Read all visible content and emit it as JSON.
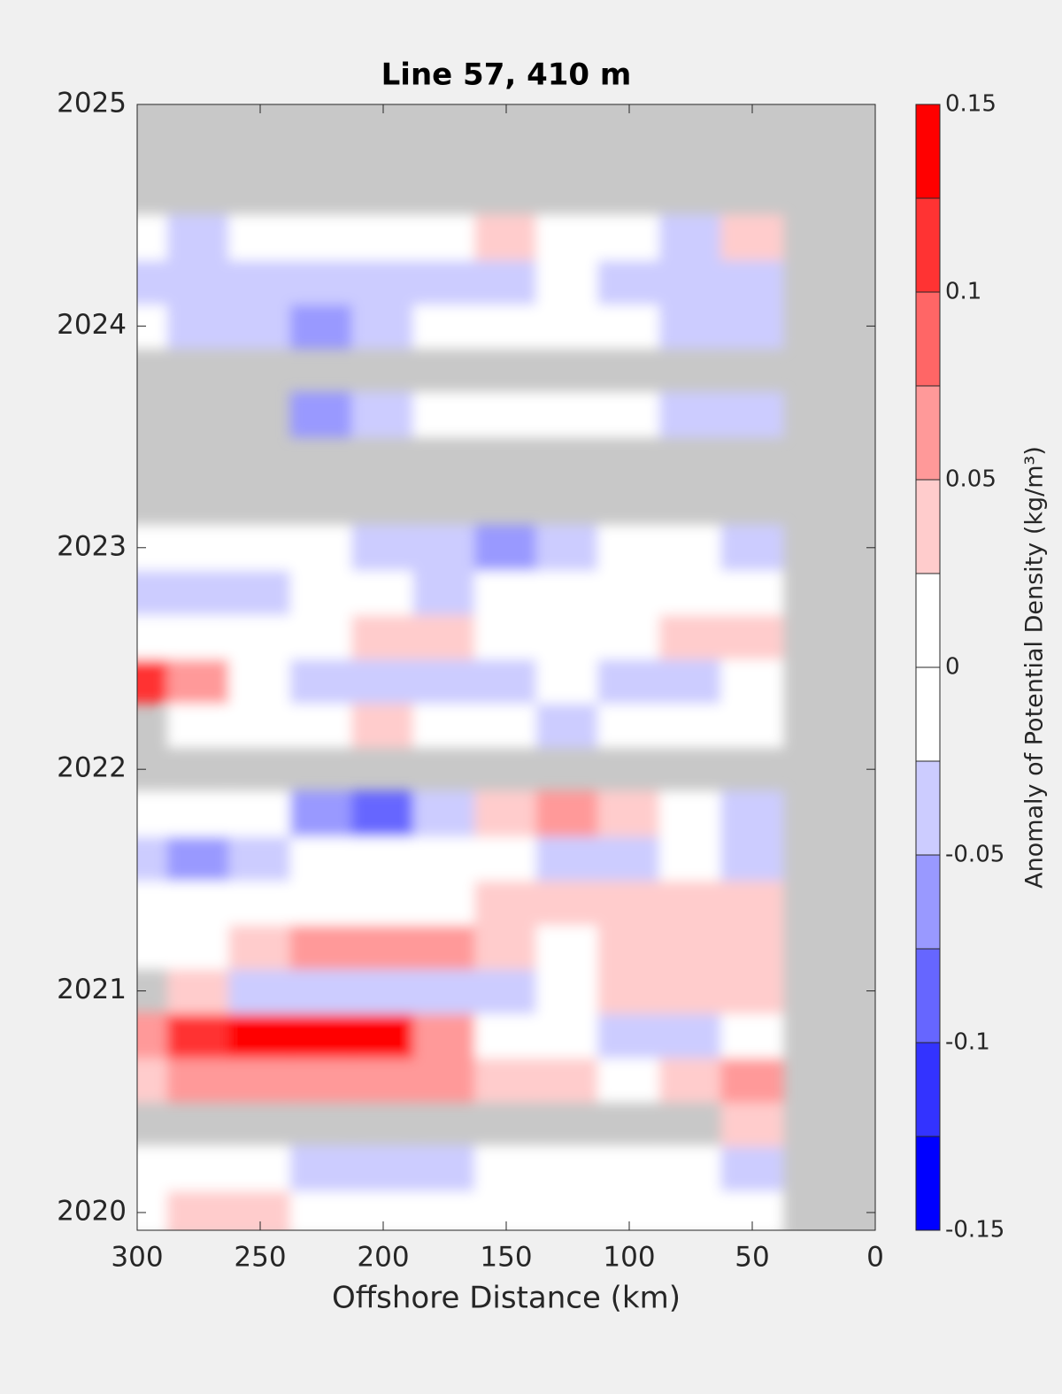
{
  "chart_data": {
    "type": "contour",
    "title": "Line 57, 410 m",
    "x_label": "Offshore Distance (km)",
    "colorbar_label": "Anomaly of Potential Density (kg/m³)",
    "xlim": [
      300,
      0
    ],
    "xticks": [
      300,
      250,
      200,
      150,
      100,
      50,
      0
    ],
    "ylim": [
      2019.92,
      2025
    ],
    "yticks": [
      2020,
      2021,
      2022,
      2023,
      2024,
      2025
    ],
    "x": [
      300,
      275,
      250,
      225,
      200,
      175,
      150,
      125,
      100,
      75,
      50
    ],
    "y": [
      2020.0,
      2020.2,
      2020.4,
      2020.6,
      2020.8,
      2021.0,
      2021.2,
      2021.4,
      2021.6,
      2021.8,
      2022.0,
      2022.2,
      2022.4,
      2022.6,
      2022.8,
      2023.0,
      2023.2,
      2023.4,
      2023.6,
      2023.8,
      2024.0,
      2024.2,
      2024.4
    ],
    "z": [
      [
        0,
        0.03,
        0.03,
        0,
        0,
        0,
        0,
        0,
        0,
        0,
        0
      ],
      [
        0,
        0,
        0,
        -0.03,
        -0.05,
        -0.03,
        0,
        0,
        0,
        0,
        -0.05
      ],
      [
        null,
        null,
        null,
        null,
        null,
        null,
        null,
        null,
        null,
        null,
        0.03
      ],
      [
        0.03,
        0.05,
        0.05,
        0.07,
        0.07,
        0.05,
        0.03,
        0.03,
        0,
        0.03,
        0.05
      ],
      [
        0.07,
        0.1,
        0.13,
        0.15,
        0.13,
        0.05,
        0,
        0,
        -0.03,
        -0.03,
        0
      ],
      [
        null,
        0.03,
        -0.03,
        -0.05,
        -0.03,
        -0.03,
        -0.03,
        0,
        0.03,
        0.03,
        0.03
      ],
      [
        0,
        0,
        0.03,
        0.05,
        0.07,
        0.05,
        0.03,
        0,
        0.03,
        0.03,
        0.03
      ],
      [
        0,
        0,
        0,
        0,
        0,
        0,
        0.03,
        0.03,
        0.03,
        0.03,
        0.03
      ],
      [
        -0.03,
        -0.07,
        -0.03,
        0,
        0,
        0,
        0,
        -0.03,
        -0.05,
        0,
        -0.03
      ],
      [
        0,
        0,
        0,
        -0.07,
        -0.1,
        -0.05,
        0.03,
        0.05,
        0.03,
        0,
        -0.05
      ],
      [
        null,
        null,
        null,
        null,
        null,
        null,
        null,
        null,
        null,
        null,
        null
      ],
      [
        null,
        0,
        0,
        0,
        0.03,
        0,
        0,
        -0.03,
        0,
        0,
        0
      ],
      [
        0.1,
        0.05,
        0,
        -0.03,
        -0.05,
        -0.03,
        -0.05,
        0,
        -0.03,
        -0.03,
        0
      ],
      [
        0,
        0,
        0,
        0,
        0.03,
        0.03,
        0,
        0,
        0,
        0.03,
        0.03
      ],
      [
        -0.05,
        -0.03,
        -0.05,
        0,
        0,
        -0.03,
        0,
        0,
        0,
        0,
        0
      ],
      [
        0,
        0,
        0,
        0,
        -0.03,
        -0.05,
        -0.07,
        -0.03,
        0,
        0,
        -0.03
      ],
      [
        null,
        null,
        null,
        null,
        null,
        null,
        null,
        null,
        null,
        null,
        null
      ],
      [
        null,
        null,
        null,
        null,
        null,
        null,
        null,
        null,
        null,
        null,
        null
      ],
      [
        null,
        null,
        null,
        -0.07,
        -0.05,
        0,
        0,
        0,
        0,
        -0.03,
        -0.05
      ],
      [
        null,
        null,
        null,
        null,
        null,
        null,
        null,
        null,
        null,
        null,
        null
      ],
      [
        0,
        -0.03,
        -0.05,
        -0.07,
        -0.05,
        0,
        0,
        0,
        0,
        -0.03,
        -0.05
      ],
      [
        -0.03,
        -0.05,
        -0.03,
        -0.03,
        -0.03,
        -0.03,
        -0.03,
        0,
        -0.03,
        -0.03,
        -0.03
      ],
      [
        0,
        -0.03,
        0,
        0,
        0,
        0,
        0.03,
        0,
        0,
        -0.03,
        0.03
      ]
    ],
    "levels": [
      -0.15,
      -0.125,
      -0.1,
      -0.075,
      -0.05,
      -0.025,
      0,
      0.025,
      0.05,
      0.075,
      0.1,
      0.125,
      0.15
    ],
    "colors": [
      "#0000ff",
      "#3333ff",
      "#6666ff",
      "#9999ff",
      "#ccccff",
      "#ffffff",
      "#ffffff",
      "#ffcccc",
      "#ff9999",
      "#ff6666",
      "#ff3333",
      "#ff0000"
    ],
    "colorbar_ticks": [
      -0.15,
      -0.1,
      -0.05,
      0,
      0.05,
      0.1,
      0.15
    ],
    "missing_color": "#c8c8c8"
  }
}
